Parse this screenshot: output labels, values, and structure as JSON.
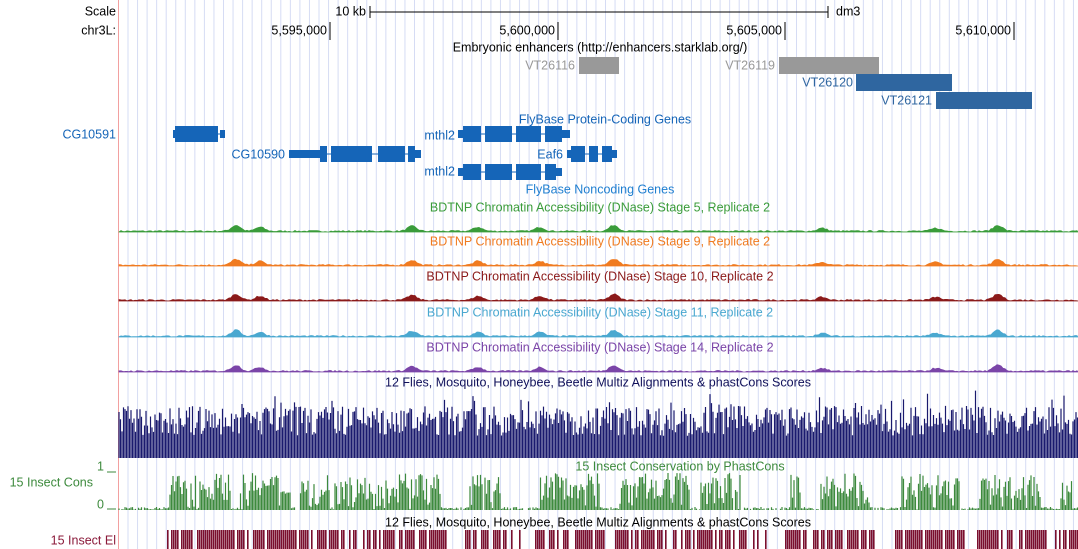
{
  "scale": {
    "label": "Scale",
    "bar": "10 kb",
    "assembly": "dm3"
  },
  "position": {
    "chrom": "chr3L:",
    "ticks": [
      "5,595,000",
      "5,600,000",
      "5,605,000",
      "5,610,000"
    ]
  },
  "enhancers": {
    "title": "Embryonic enhancers (http://enhancers.starklab.org/)",
    "features": [
      "VT26116",
      "VT26119",
      "VT26120",
      "VT26121"
    ]
  },
  "protein_coding": {
    "title": "FlyBase Protein-Coding Genes",
    "side_label": "CG10591",
    "genes": [
      "CG10590",
      "mthl2",
      "Eaf6"
    ]
  },
  "noncoding": {
    "title": "FlyBase Noncoding Genes",
    "genes": [
      "mthl2"
    ]
  },
  "dnase": [
    "BDTNP Chromatin Accessibility (DNase) Stage 5, Replicate 2",
    "BDTNP Chromatin Accessibility (DNase) Stage 9, Replicate 2",
    "BDTNP Chromatin Accessibility (DNase) Stage 10, Replicate 2",
    "BDTNP Chromatin Accessibility (DNase) Stage 11, Replicate 2",
    "BDTNP Chromatin Accessibility (DNase) Stage 14, Replicate 2"
  ],
  "multiz": {
    "title": "12 Flies, Mosquito, Honeybee, Beetle Multiz Alignments & phastCons Scores"
  },
  "cons": {
    "side_label": "15 Insect Cons",
    "axis_top": "1",
    "axis_bottom": "0",
    "title": "15 Insect Conservation by PhastCons"
  },
  "elements": {
    "title": "12 Flies, Mosquito, Honeybee, Beetle Multiz Alignments & phastCons Scores",
    "side_label": "15 Insect El"
  }
}
